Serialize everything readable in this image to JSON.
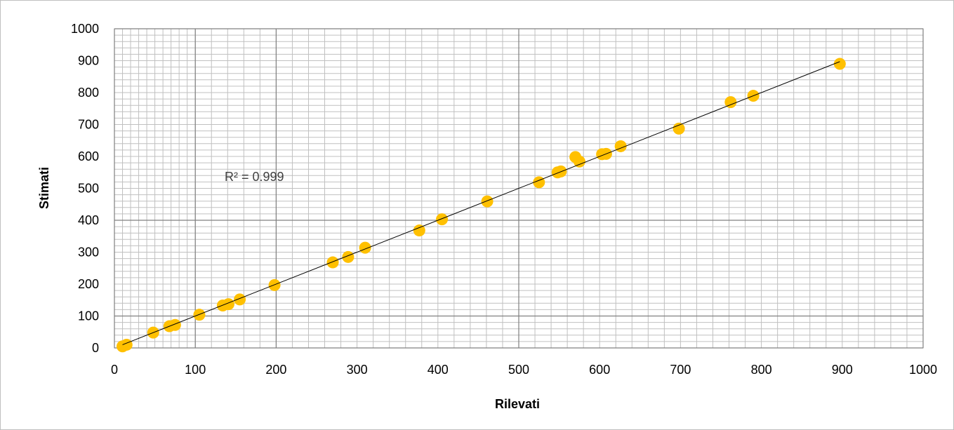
{
  "chart_data": {
    "type": "scatter",
    "title": "",
    "xlabel": "Rilevati",
    "ylabel": "Stimati",
    "xlim": [
      0,
      1000
    ],
    "ylim": [
      0,
      1000
    ],
    "x_ticks": [
      0,
      100,
      200,
      300,
      400,
      500,
      600,
      700,
      800,
      900,
      1000
    ],
    "y_ticks": [
      0,
      100,
      200,
      300,
      400,
      500,
      600,
      700,
      800,
      900,
      1000
    ],
    "grid": true,
    "legend": "none",
    "annotation": "R² = 0.999",
    "trendline": {
      "type": "linear",
      "x": [
        10,
        897
      ],
      "y": [
        10,
        897
      ]
    },
    "colors": {
      "marker": "#FFC000",
      "trendline": "#000000",
      "minor_grid": "#c0c0c0",
      "major_grid": "#808080"
    },
    "series": [
      {
        "x": [
          10,
          15,
          48,
          68,
          75,
          105,
          134,
          141,
          155,
          198,
          270,
          289,
          310,
          377,
          405,
          461,
          525,
          548,
          552,
          570,
          575,
          603,
          608,
          626,
          698,
          762,
          790,
          897
        ],
        "y": [
          5,
          10,
          48,
          68,
          72,
          104,
          133,
          137,
          152,
          197,
          268,
          285,
          314,
          368,
          403,
          459,
          519,
          550,
          553,
          598,
          584,
          607,
          608,
          632,
          687,
          770,
          790,
          890
        ]
      }
    ]
  }
}
